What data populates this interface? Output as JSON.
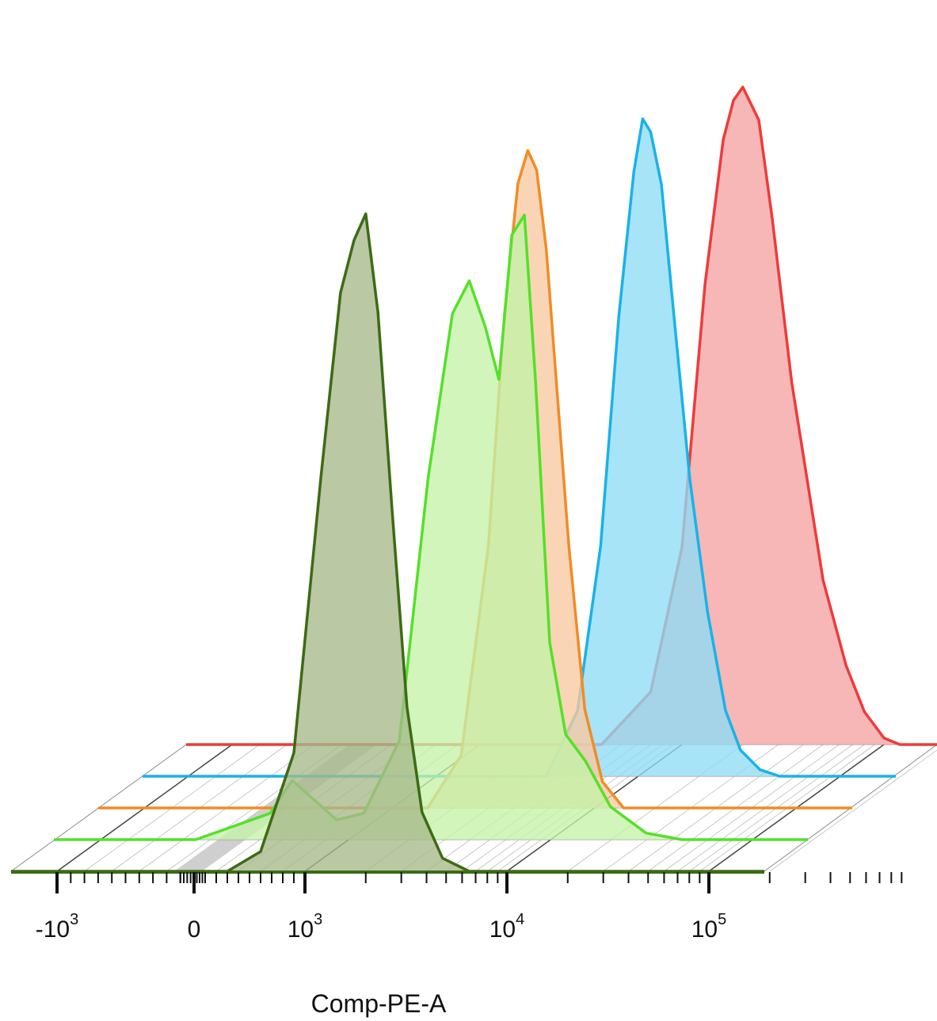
{
  "chart_data": {
    "type": "area",
    "subtype": "offset-histogram-overlay",
    "xlabel": "Comp-PE-A",
    "ylabel": "",
    "x_scale": "biexponential",
    "xlim": [
      -1500,
      250000
    ],
    "x_ticks": [
      {
        "value": -1000,
        "base": "-10",
        "exp": "3"
      },
      {
        "value": 0,
        "base": "0",
        "exp": ""
      },
      {
        "value": 1000,
        "base": "10",
        "exp": "3"
      },
      {
        "value": 10000,
        "base": "10",
        "exp": "4"
      },
      {
        "value": 100000,
        "base": "10",
        "exp": "5"
      }
    ],
    "grid": "diagonal-offset",
    "legend": "none",
    "series": [
      {
        "color": "#ee3b3b",
        "fill": "#f5a3a3",
        "x": [
          4000,
          7000,
          10000,
          13000,
          16000,
          18000,
          20000,
          24000,
          28000,
          35000,
          50000,
          65000,
          80000,
          100000,
          120000
        ],
        "y": [
          0,
          8,
          30,
          70,
          92,
          98,
          100,
          95,
          80,
          55,
          25,
          12,
          5,
          1,
          0
        ]
      },
      {
        "color": "#1ab2e8",
        "fill": "#8edcf6",
        "x": [
          3500,
          5000,
          6500,
          8000,
          9500,
          10500,
          11500,
          13000,
          15000,
          18000,
          22000,
          27000,
          32000,
          40000,
          50000
        ],
        "y": [
          0,
          10,
          35,
          70,
          92,
          100,
          98,
          90,
          70,
          45,
          25,
          10,
          4,
          1,
          0
        ]
      },
      {
        "color": "#f08c28",
        "fill": "#f9c9a0",
        "x": [
          1500,
          2200,
          3000,
          3600,
          4200,
          4700,
          5200,
          5800,
          6500,
          7500,
          9000,
          11000,
          14000
        ],
        "y": [
          0,
          8,
          40,
          75,
          95,
          100,
          97,
          85,
          65,
          40,
          15,
          4,
          0
        ]
      },
      {
        "color": "#55e02a",
        "fill": "#c4f2a6",
        "x": [
          -300,
          300,
          500,
          700,
          900,
          1200,
          1800,
          2500,
          3300,
          4000,
          4800,
          5600,
          6500,
          7500,
          8500,
          10000,
          12000,
          15000,
          20000,
          30000,
          45000
        ],
        "y": [
          0,
          4,
          9,
          6,
          3,
          4,
          15,
          55,
          80,
          85,
          78,
          70,
          92,
          95,
          70,
          30,
          16,
          12,
          5,
          1,
          0
        ]
      },
      {
        "color": "#3d6b14",
        "fill": "#a6b88a",
        "x": [
          300,
          600,
          900,
          1200,
          1500,
          1750,
          2000,
          2300,
          2700,
          3200,
          3800,
          4800,
          6500
        ],
        "y": [
          0,
          3,
          18,
          60,
          88,
          96,
          100,
          85,
          55,
          25,
          9,
          2,
          0
        ]
      }
    ]
  }
}
